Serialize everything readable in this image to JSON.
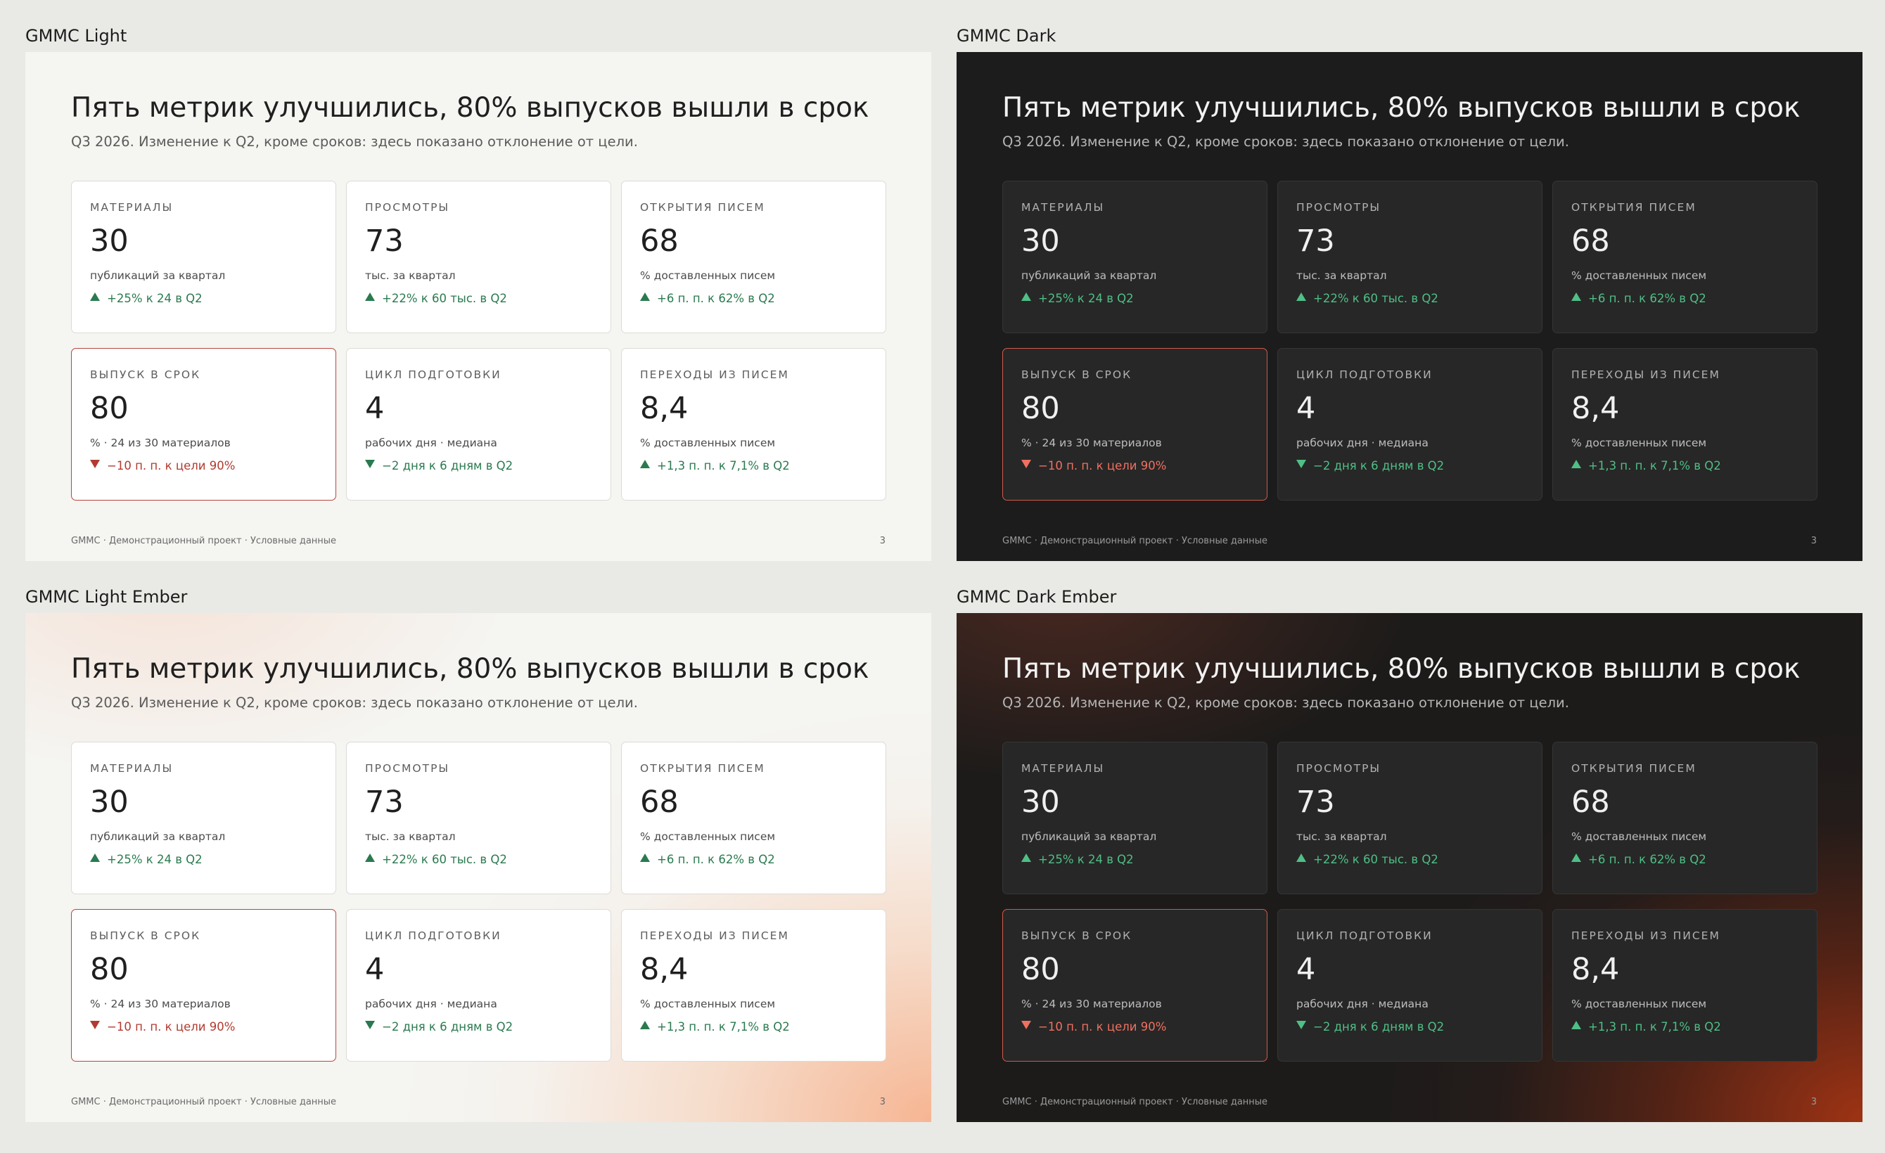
{
  "panels": [
    {
      "name": "GMMC Light"
    },
    {
      "name": "GMMC Dark"
    },
    {
      "name": "GMMC Light Ember"
    },
    {
      "name": "GMMC Dark Ember"
    }
  ],
  "slide": {
    "title": "Пять метрик улучшились, 80% выпусков вышли в срок",
    "subtitle": "Q3 2026. Изменение к Q2, кроме сроков: здесь показано отклонение от цели.",
    "footer": "GMMC · Демонстрационный проект · Условные данные",
    "page_number": "3",
    "cards": [
      {
        "label": "МАТЕРИАЛЫ",
        "value": "30",
        "unit": "публикаций за квартал",
        "delta": "+25% к 24 в Q2",
        "direction": "up",
        "tone": "good"
      },
      {
        "label": "ПРОСМОТРЫ",
        "value": "73",
        "unit": "тыс. за квартал",
        "delta": "+22% к 60 тыс. в Q2",
        "direction": "up",
        "tone": "good"
      },
      {
        "label": "ОТКРЫТИЯ ПИСЕМ",
        "value": "68",
        "unit": "% доставленных писем",
        "delta": "+6 п. п. к 62% в Q2",
        "direction": "up",
        "tone": "good"
      },
      {
        "label": "ВЫПУСК В СРОК",
        "value": "80",
        "unit": "% · 24 из 30 материалов",
        "delta": "−10 п. п. к цели 90%",
        "direction": "down",
        "tone": "bad"
      },
      {
        "label": "ЦИКЛ ПОДГОТОВКИ",
        "value": "4",
        "unit": "рабочих дня · медиана",
        "delta": "−2 дня к 6 дням в Q2",
        "direction": "down",
        "tone": "good"
      },
      {
        "label": "ПЕРЕХОДЫ ИЗ ПИСЕМ",
        "value": "8,4",
        "unit": "% доставленных писем",
        "delta": "+1,3 п. п. к 7,1% в Q2",
        "direction": "up",
        "tone": "good"
      }
    ]
  },
  "colors": {
    "page_background": "#e9e9e5",
    "light_slide": "#f5f5f2",
    "dark_slide": "#1c1c1c",
    "good_light": "#2a7a4f",
    "bad_light": "#b23a30",
    "good_dark": "#4fbf86",
    "bad_dark": "#f07060",
    "ember_light": "#f6a073",
    "ember_dark": "#a53414"
  }
}
